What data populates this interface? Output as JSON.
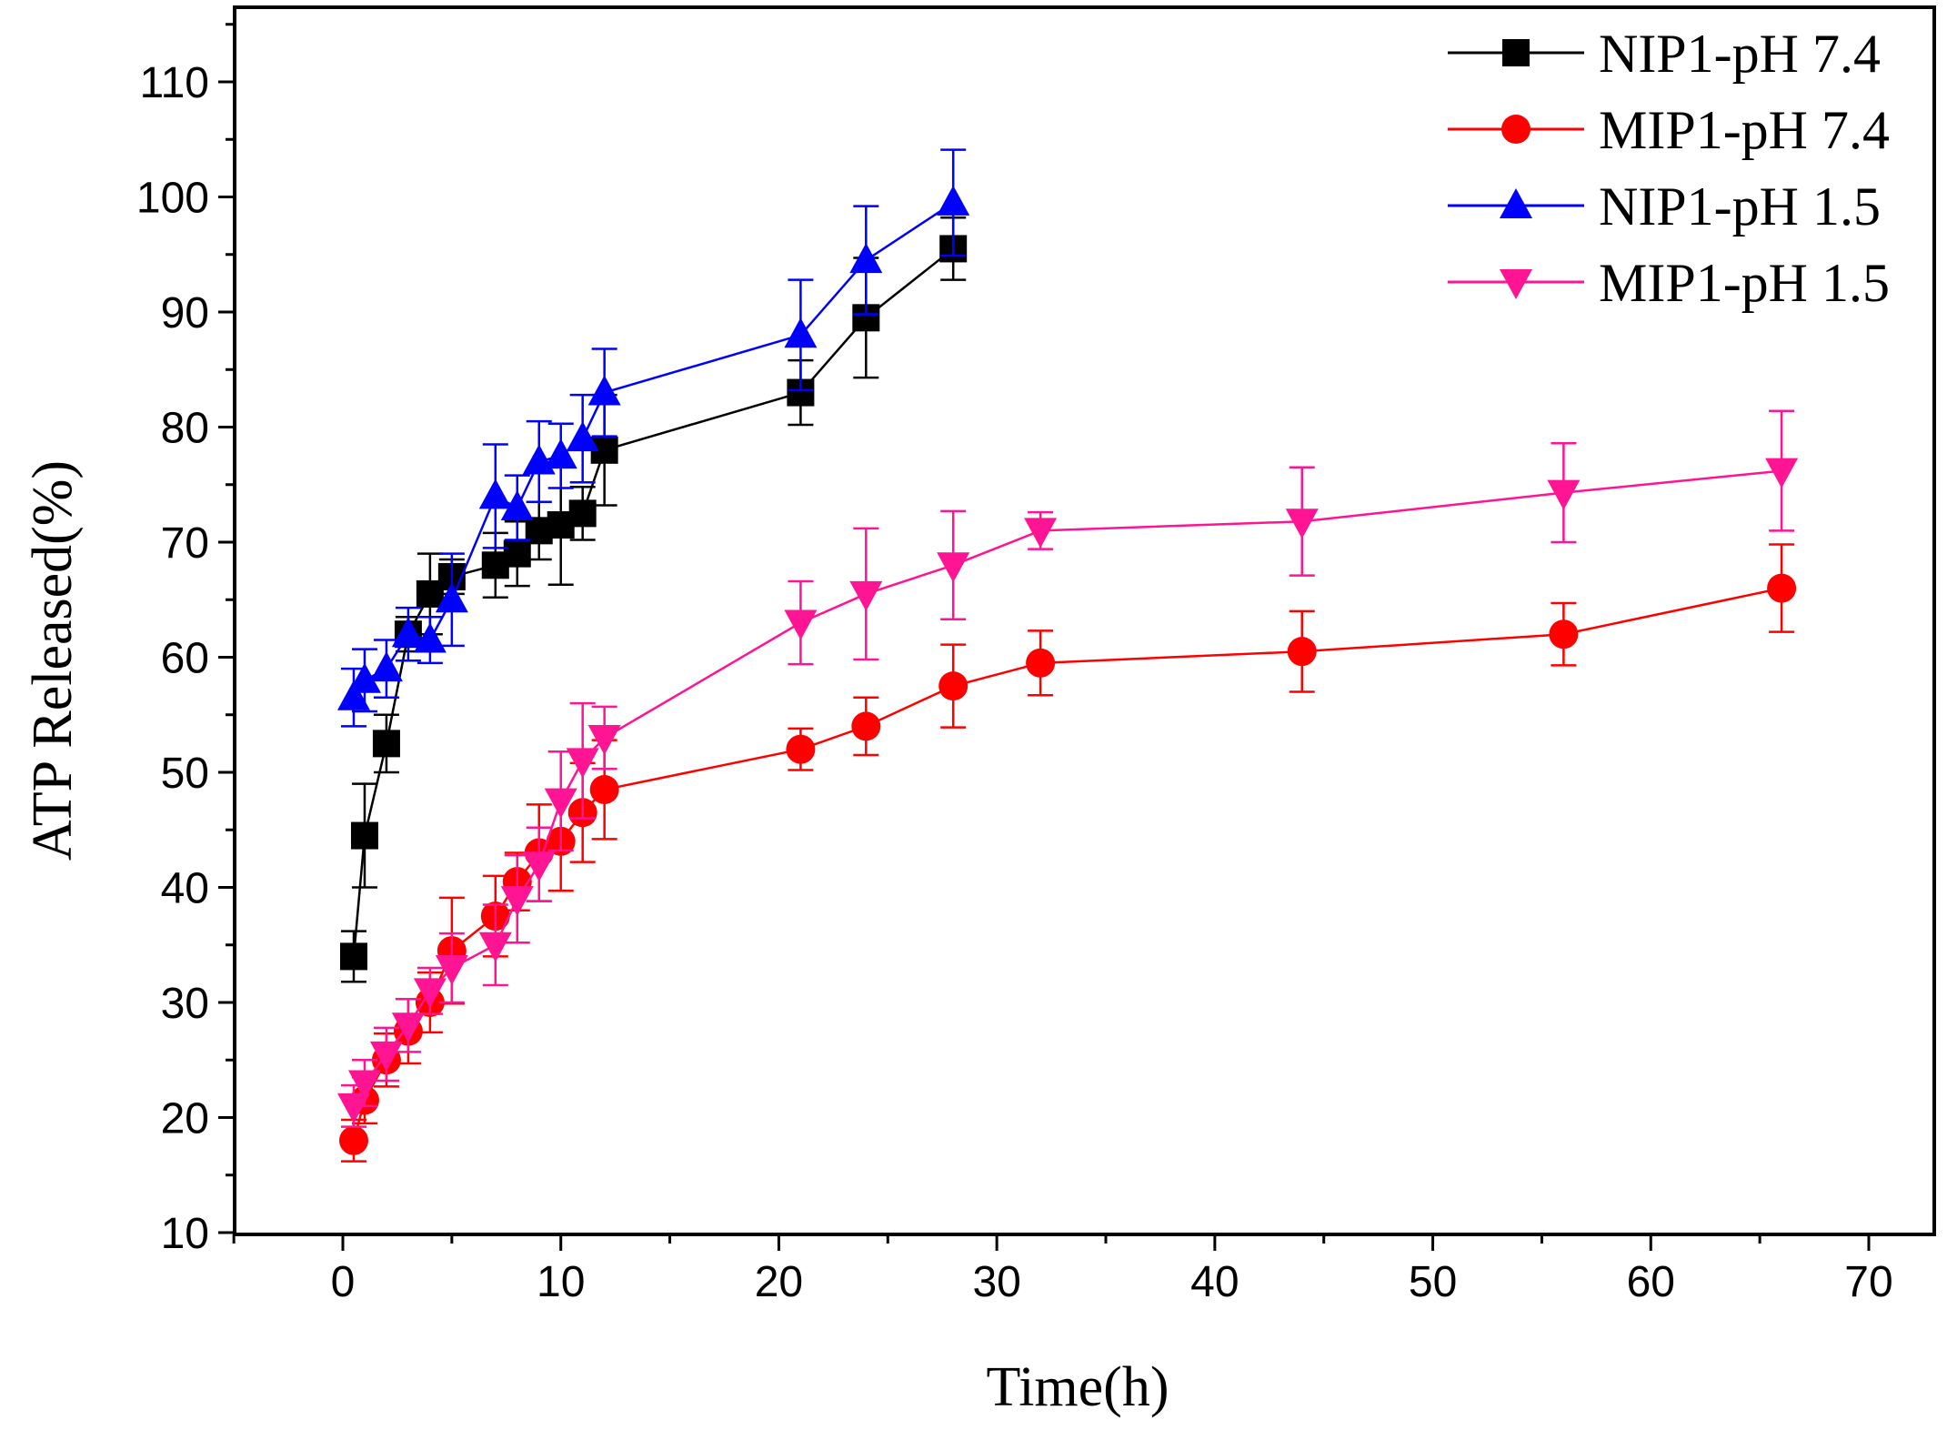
{
  "chart_data": {
    "type": "line",
    "title": "",
    "xlabel": "Time(h)",
    "ylabel": "ATP Released(%)",
    "xlim": [
      -5,
      72
    ],
    "ylim": [
      10,
      115
    ],
    "xticks": [
      0,
      10,
      20,
      30,
      40,
      50,
      60,
      70
    ],
    "yticks": [
      10,
      20,
      30,
      40,
      50,
      60,
      70,
      80,
      90,
      100,
      110
    ],
    "xtick_labels": [
      "0",
      "10",
      "20",
      "30",
      "40",
      "50",
      "60",
      "70"
    ],
    "ytick_labels": [
      "10",
      "20",
      "30",
      "40",
      "50",
      "60",
      "70",
      "80",
      "90",
      "100",
      "110"
    ],
    "grid": false,
    "legend_position": "top-right",
    "series": [
      {
        "name": "NIP1-pH 7.4",
        "color": "#000000",
        "marker": "square",
        "x": [
          0.5,
          1,
          2,
          3,
          4,
          5,
          7,
          8,
          9,
          10,
          11,
          12,
          21,
          24,
          28
        ],
        "y": [
          34,
          44.5,
          52.5,
          62,
          65.5,
          67,
          68,
          69,
          71,
          71.5,
          72.5,
          78,
          83,
          89.5,
          95.5
        ],
        "err": [
          2.2,
          4.5,
          2.5,
          1.5,
          3.5,
          1.5,
          2.8,
          2.8,
          2.5,
          5.2,
          2.3,
          4.8,
          2.8,
          5.2,
          2.7
        ]
      },
      {
        "name": "MIP1-pH 7.4",
        "color": "#ff0000",
        "marker": "circle",
        "x": [
          0.5,
          1,
          2,
          3,
          4,
          5,
          7,
          8,
          9,
          10,
          11,
          12,
          21,
          24,
          28,
          32,
          44,
          56,
          66
        ],
        "y": [
          18,
          21.5,
          25,
          27.5,
          30,
          34.5,
          37.5,
          40.5,
          43,
          44,
          46.5,
          48.5,
          52,
          54,
          57.5,
          59.5,
          60.5,
          62,
          66
        ],
        "err": [
          1.8,
          2.0,
          2.3,
          2.8,
          2.6,
          4.6,
          3.5,
          2.5,
          4.2,
          4.3,
          4.3,
          4.3,
          1.8,
          2.5,
          3.6,
          2.8,
          3.5,
          2.7,
          3.8
        ]
      },
      {
        "name": "NIP1-pH 1.5",
        "color": "#0000ff",
        "marker": "triangle-up",
        "x": [
          0.5,
          1,
          2,
          3,
          4,
          5,
          7,
          8,
          9,
          10,
          11,
          12,
          21,
          24,
          28
        ],
        "y": [
          56.5,
          58,
          59,
          62,
          61.5,
          65,
          74,
          73,
          77,
          77.5,
          79,
          83,
          88,
          94.5,
          99.5
        ],
        "err": [
          2.5,
          2.7,
          2.5,
          2.3,
          2.0,
          4.0,
          4.5,
          2.8,
          3.5,
          2.8,
          3.8,
          3.8,
          4.8,
          4.7,
          4.6
        ]
      },
      {
        "name": "MIP1-pH 1.5",
        "color": "#ff1493",
        "marker": "triangle-down",
        "x": [
          0.5,
          1,
          2,
          3,
          4,
          5,
          7,
          8,
          9,
          10,
          11,
          12,
          21,
          24,
          28,
          32,
          44,
          56,
          66
        ],
        "y": [
          21,
          23,
          25.5,
          28,
          31,
          33,
          35,
          39,
          42,
          47.5,
          51,
          53,
          63,
          65.5,
          68,
          71,
          71.8,
          74.3,
          76.2
        ],
        "err": [
          1.8,
          2.0,
          2.3,
          2.3,
          2.0,
          3.0,
          3.5,
          3.8,
          3.2,
          4.3,
          5.0,
          2.7,
          3.6,
          5.7,
          4.7,
          1.6,
          4.7,
          4.3,
          5.2
        ]
      }
    ]
  }
}
